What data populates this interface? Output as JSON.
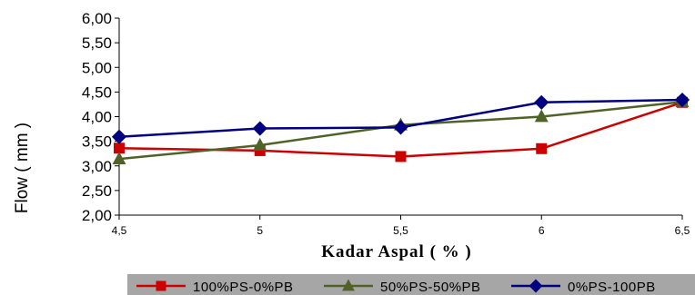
{
  "chart_data": {
    "type": "line",
    "title": "",
    "xlabel": "Kadar Aspal ( % )",
    "ylabel": "Flow ( mm )",
    "categories": [
      "4,5",
      "5",
      "5,5",
      "6",
      "6,5"
    ],
    "x": [
      4.5,
      5.0,
      5.5,
      6.0,
      6.5
    ],
    "xlim": [
      4.5,
      6.5
    ],
    "ylim": [
      2.0,
      6.0
    ],
    "yticks": [
      "2,00",
      "2,50",
      "3,00",
      "3,50",
      "4,00",
      "4,50",
      "5,00",
      "5,50",
      "6,00"
    ],
    "ytick_values": [
      2.0,
      2.5,
      3.0,
      3.5,
      4.0,
      4.5,
      5.0,
      5.5,
      6.0
    ],
    "grid": false,
    "legend_position": "bottom",
    "series": [
      {
        "name": "100%PS-0%PB",
        "values": [
          3.36,
          3.31,
          3.19,
          3.35,
          4.29
        ],
        "color": "#cc0000",
        "marker": "square"
      },
      {
        "name": "50%PS-50%PB",
        "values": [
          3.14,
          3.42,
          3.83,
          4.0,
          4.3
        ],
        "color": "#4f6228",
        "marker": "triangle"
      },
      {
        "name": "0%PS-100PB",
        "values": [
          3.59,
          3.76,
          3.78,
          4.29,
          4.34
        ],
        "color": "#000080",
        "marker": "diamond"
      }
    ],
    "legend_background": "#a6a6a6"
  }
}
